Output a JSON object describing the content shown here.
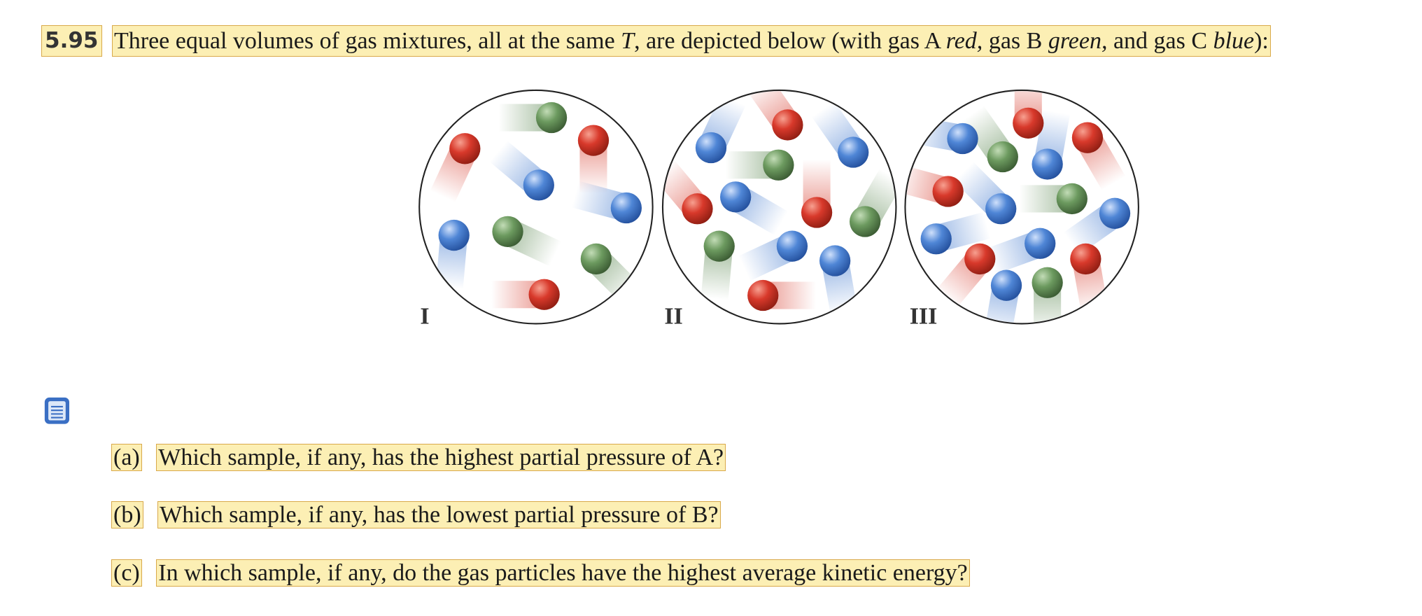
{
  "header": {
    "number": "5.95",
    "text": [
      "Three equal volumes of gas mixtures, all at the same ",
      "T",
      ", are depicted below (with gas A ",
      "red,",
      " gas B ",
      "green,",
      " and gas C ",
      "blue",
      "):"
    ]
  },
  "figure": {
    "labels": [
      "I",
      "II",
      "III"
    ]
  },
  "questions": [
    {
      "label": "(a)",
      "text": "Which sample, if any, has the highest partial pressure of A?"
    },
    {
      "label": "(b)",
      "text": "Which sample, if any, has the lowest partial pressure of B?"
    },
    {
      "label": "(c)",
      "text": "In which sample, if any, do the gas particles have the highest average kinetic energy?"
    }
  ]
}
